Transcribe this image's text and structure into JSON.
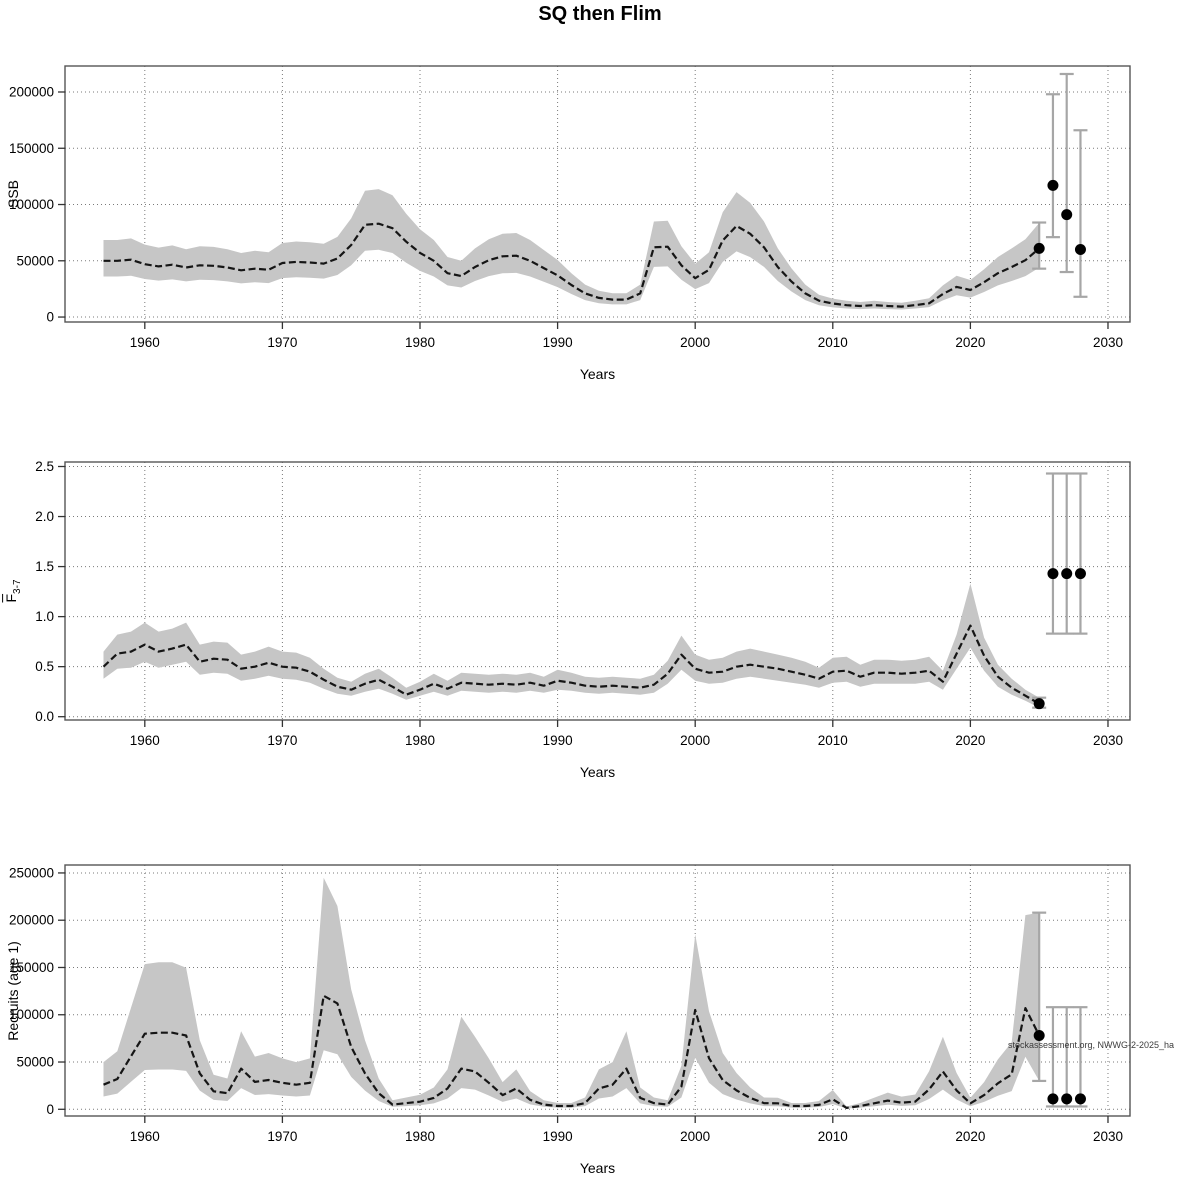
{
  "title": "SQ then Flim",
  "watermark": "stockassessment.org, NWWG-2-2025_ha",
  "chart_data": {
    "type": "line",
    "subtitle": "Stock assessment summary with confidence bands and 2026-2028 forecast intervals",
    "xlabel": "Years",
    "xlim": [
      1954.2,
      2031.6
    ],
    "xticks": [
      1960,
      1970,
      1980,
      1990,
      2000,
      2010,
      2020,
      2030
    ],
    "years": [
      1957,
      1958,
      1959,
      1960,
      1961,
      1962,
      1963,
      1964,
      1965,
      1966,
      1967,
      1968,
      1969,
      1970,
      1971,
      1972,
      1973,
      1974,
      1975,
      1976,
      1977,
      1978,
      1979,
      1980,
      1981,
      1982,
      1983,
      1984,
      1985,
      1986,
      1987,
      1988,
      1989,
      1990,
      1991,
      1992,
      1993,
      1994,
      1995,
      1996,
      1997,
      1998,
      1999,
      2000,
      2001,
      2002,
      2003,
      2004,
      2005,
      2006,
      2007,
      2008,
      2009,
      2010,
      2011,
      2012,
      2013,
      2014,
      2015,
      2016,
      2017,
      2018,
      2019,
      2020,
      2021,
      2022,
      2023,
      2024,
      2025
    ],
    "legend": "none",
    "grid": "dotted",
    "colors": {
      "band": "#c6c6c6",
      "line": "#151515",
      "point": "#000000",
      "interval": "#a6a6a6",
      "grid": "#7a7a7a",
      "box": "#555555",
      "tick": "#333333"
    },
    "panels": [
      {
        "id": "ssb",
        "ylabel": "SSB",
        "ylim": [
          -4400,
          223100
        ],
        "yticks": [
          0,
          50000,
          100000,
          150000,
          200000
        ],
        "ytick_labels": [
          "0",
          "50000",
          "100000",
          "150000",
          "200000"
        ],
        "values": [
          50000,
          50000,
          51000,
          47000,
          45000,
          46500,
          44000,
          46000,
          45500,
          44000,
          41500,
          43000,
          42000,
          48000,
          49000,
          48500,
          47500,
          52000,
          64000,
          82000,
          83000,
          79000,
          67000,
          57000,
          50000,
          39000,
          36500,
          44500,
          50500,
          54000,
          54500,
          50000,
          43500,
          37000,
          28500,
          21000,
          17000,
          15500,
          15500,
          21000,
          62000,
          62500,
          46000,
          34500,
          42000,
          68000,
          81000,
          74000,
          62000,
          44500,
          31500,
          21000,
          14500,
          12000,
          10500,
          9800,
          10600,
          9800,
          9300,
          10600,
          12200,
          20500,
          26800,
          24000,
          31000,
          39000,
          44500,
          50500,
          61000
        ],
        "band_lower": [
          36000,
          36000,
          36700,
          33800,
          32400,
          33500,
          31700,
          33100,
          32800,
          31700,
          29900,
          31000,
          30200,
          34600,
          35300,
          34900,
          34200,
          37400,
          46100,
          59000,
          59800,
          56900,
          48200,
          41000,
          36000,
          28100,
          26300,
          32000,
          36400,
          38900,
          39200,
          36000,
          31300,
          26600,
          20500,
          15100,
          12200,
          11200,
          11200,
          15100,
          44600,
          45000,
          33100,
          24800,
          30200,
          49000,
          58300,
          53300,
          44600,
          32000,
          22700,
          15100,
          10400,
          8600,
          7600,
          7100,
          7600,
          7100,
          6700,
          7600,
          8800,
          14800,
          19300,
          17300,
          22300,
          28100,
          32000,
          36400,
          43900
        ],
        "band_upper": [
          68500,
          68500,
          69900,
          64400,
          61700,
          63700,
          60300,
          63000,
          62300,
          60300,
          56900,
          58900,
          57500,
          65800,
          67100,
          66400,
          65100,
          71200,
          87700,
          112300,
          113700,
          108200,
          91800,
          78100,
          68500,
          53400,
          50000,
          61000,
          69200,
          74000,
          74700,
          68500,
          59600,
          50700,
          39000,
          28800,
          23300,
          21200,
          21200,
          28800,
          84900,
          85600,
          63000,
          47300,
          57500,
          93200,
          111000,
          101400,
          84900,
          61000,
          43200,
          28800,
          19900,
          16400,
          14400,
          13400,
          14500,
          13400,
          12700,
          14500,
          16700,
          28100,
          36700,
          32900,
          42500,
          53400,
          61000,
          69200,
          83600
        ],
        "final": {
          "year": 2025,
          "value": 61000,
          "ci": [
            43000,
            84000
          ]
        },
        "forecast": [
          {
            "year": 2026,
            "value": 117000,
            "ci": [
              71000,
              198000
            ]
          },
          {
            "year": 2027,
            "value": 91000,
            "ci": [
              40000,
              216000
            ]
          },
          {
            "year": 2028,
            "value": 60000,
            "ci": [
              18000,
              166000
            ]
          }
        ]
      },
      {
        "id": "f",
        "ylabel": "F3-7",
        "ylabel_main": "F",
        "ylabel_sub": "3-7",
        "ylabel_overline": true,
        "ylim": [
          -0.033,
          2.545
        ],
        "yticks": [
          0,
          0.5,
          1.0,
          1.5,
          2.0,
          2.5
        ],
        "ytick_labels": [
          "0.0",
          "0.5",
          "1.0",
          "1.5",
          "2.0",
          "2.5"
        ],
        "values": [
          0.5,
          0.63,
          0.65,
          0.72,
          0.65,
          0.68,
          0.72,
          0.55,
          0.58,
          0.57,
          0.48,
          0.5,
          0.54,
          0.5,
          0.49,
          0.45,
          0.37,
          0.3,
          0.27,
          0.33,
          0.37,
          0.3,
          0.22,
          0.27,
          0.33,
          0.28,
          0.34,
          0.33,
          0.32,
          0.33,
          0.32,
          0.34,
          0.31,
          0.36,
          0.34,
          0.31,
          0.3,
          0.31,
          0.3,
          0.29,
          0.32,
          0.43,
          0.62,
          0.48,
          0.44,
          0.45,
          0.5,
          0.52,
          0.5,
          0.48,
          0.45,
          0.42,
          0.38,
          0.45,
          0.46,
          0.4,
          0.44,
          0.44,
          0.43,
          0.44,
          0.46,
          0.35,
          0.63,
          0.91,
          0.61,
          0.4,
          0.29,
          0.21,
          0.13
        ],
        "band_lower": [
          0.38,
          0.48,
          0.49,
          0.55,
          0.49,
          0.52,
          0.55,
          0.42,
          0.44,
          0.43,
          0.36,
          0.38,
          0.41,
          0.38,
          0.37,
          0.34,
          0.28,
          0.23,
          0.21,
          0.25,
          0.28,
          0.23,
          0.17,
          0.21,
          0.25,
          0.21,
          0.26,
          0.25,
          0.24,
          0.25,
          0.24,
          0.26,
          0.24,
          0.27,
          0.26,
          0.24,
          0.23,
          0.24,
          0.23,
          0.22,
          0.24,
          0.33,
          0.47,
          0.36,
          0.33,
          0.34,
          0.38,
          0.4,
          0.38,
          0.36,
          0.34,
          0.32,
          0.29,
          0.34,
          0.35,
          0.3,
          0.33,
          0.33,
          0.33,
          0.33,
          0.35,
          0.27,
          0.48,
          0.69,
          0.46,
          0.3,
          0.22,
          0.16,
          0.09
        ],
        "band_upper": [
          0.65,
          0.82,
          0.85,
          0.94,
          0.85,
          0.88,
          0.94,
          0.72,
          0.75,
          0.74,
          0.62,
          0.65,
          0.7,
          0.65,
          0.64,
          0.59,
          0.48,
          0.39,
          0.35,
          0.43,
          0.48,
          0.39,
          0.29,
          0.35,
          0.43,
          0.36,
          0.44,
          0.43,
          0.42,
          0.43,
          0.42,
          0.44,
          0.4,
          0.47,
          0.44,
          0.4,
          0.39,
          0.4,
          0.39,
          0.38,
          0.42,
          0.56,
          0.81,
          0.62,
          0.57,
          0.59,
          0.65,
          0.68,
          0.65,
          0.62,
          0.59,
          0.55,
          0.49,
          0.59,
          0.6,
          0.52,
          0.57,
          0.57,
          0.56,
          0.57,
          0.6,
          0.46,
          0.82,
          1.33,
          0.79,
          0.52,
          0.38,
          0.27,
          0.19
        ],
        "final": {
          "year": 2025,
          "value": 0.13,
          "ci": [
            0.09,
            0.19
          ]
        },
        "forecast": [
          {
            "year": 2026,
            "value": 1.43,
            "ci": [
              0.83,
              2.43
            ]
          },
          {
            "year": 2027,
            "value": 1.43,
            "ci": [
              0.83,
              2.43
            ]
          },
          {
            "year": 2028,
            "value": 1.43,
            "ci": [
              0.83,
              2.43
            ]
          }
        ]
      },
      {
        "id": "recruits",
        "ylabel": "Recruits (age 1)",
        "ylim": [
          -7100,
          258400
        ],
        "yticks": [
          0,
          50000,
          100000,
          150000,
          200000,
          250000
        ],
        "ytick_labels": [
          "0",
          "50000",
          "100000",
          "150000",
          "200000",
          "250000"
        ],
        "values": [
          26000,
          32000,
          56000,
          80000,
          81000,
          81000,
          78000,
          38000,
          19000,
          17000,
          43000,
          29000,
          31000,
          28000,
          26000,
          28000,
          120000,
          112000,
          66000,
          38000,
          17000,
          5000,
          6500,
          8000,
          12000,
          22000,
          43000,
          40000,
          28000,
          15000,
          22000,
          10000,
          5000,
          3500,
          3500,
          6500,
          22000,
          26000,
          43000,
          12000,
          6500,
          5000,
          24000,
          105000,
          54000,
          31000,
          20000,
          12000,
          6500,
          6300,
          3500,
          3500,
          4600,
          10600,
          1500,
          3500,
          6300,
          9200,
          7000,
          8100,
          21000,
          40000,
          20000,
          6300,
          15000,
          27500,
          37000,
          107000,
          78000
        ],
        "band_lower": [
          13500,
          16600,
          29100,
          41600,
          42100,
          42100,
          40600,
          19800,
          9900,
          8800,
          22400,
          15100,
          16100,
          14600,
          13500,
          14600,
          62400,
          58200,
          34300,
          19800,
          8800,
          2600,
          3400,
          4200,
          6200,
          11400,
          22400,
          20800,
          14600,
          7800,
          11400,
          5200,
          2600,
          1800,
          1800,
          3400,
          11400,
          13500,
          22400,
          6200,
          3400,
          2600,
          12500,
          54600,
          28100,
          16100,
          10400,
          6200,
          3400,
          3300,
          1800,
          1800,
          2400,
          5500,
          800,
          1800,
          3300,
          4800,
          3600,
          4200,
          10900,
          20800,
          10400,
          3300,
          7800,
          14300,
          19200,
          55600,
          30000
        ],
        "band_upper": [
          49900,
          61400,
          107500,
          153600,
          155500,
          155500,
          149800,
          73000,
          36500,
          32600,
          82600,
          55700,
          59500,
          53800,
          49900,
          53800,
          245000,
          215000,
          126700,
          73000,
          32600,
          9600,
          12500,
          15400,
          23000,
          42200,
          98000,
          76800,
          53800,
          28800,
          42200,
          19200,
          9600,
          6700,
          6700,
          12500,
          42200,
          49900,
          82600,
          23000,
          12500,
          9600,
          46100,
          185000,
          103700,
          59500,
          38400,
          23000,
          12500,
          12100,
          6700,
          6700,
          8800,
          20400,
          2900,
          6700,
          12100,
          17700,
          13400,
          15600,
          40300,
          76800,
          38400,
          12100,
          28800,
          52800,
          71000,
          205400,
          208000
        ],
        "final": {
          "year": 2025,
          "value": 78000,
          "ci": [
            30000,
            208000
          ]
        },
        "forecast": [
          {
            "year": 2026,
            "value": 11000,
            "ci": [
              3000,
              108000
            ]
          },
          {
            "year": 2027,
            "value": 11000,
            "ci": [
              3000,
              108000
            ]
          },
          {
            "year": 2028,
            "value": 11000,
            "ci": [
              3000,
              108000
            ]
          }
        ]
      }
    ]
  }
}
